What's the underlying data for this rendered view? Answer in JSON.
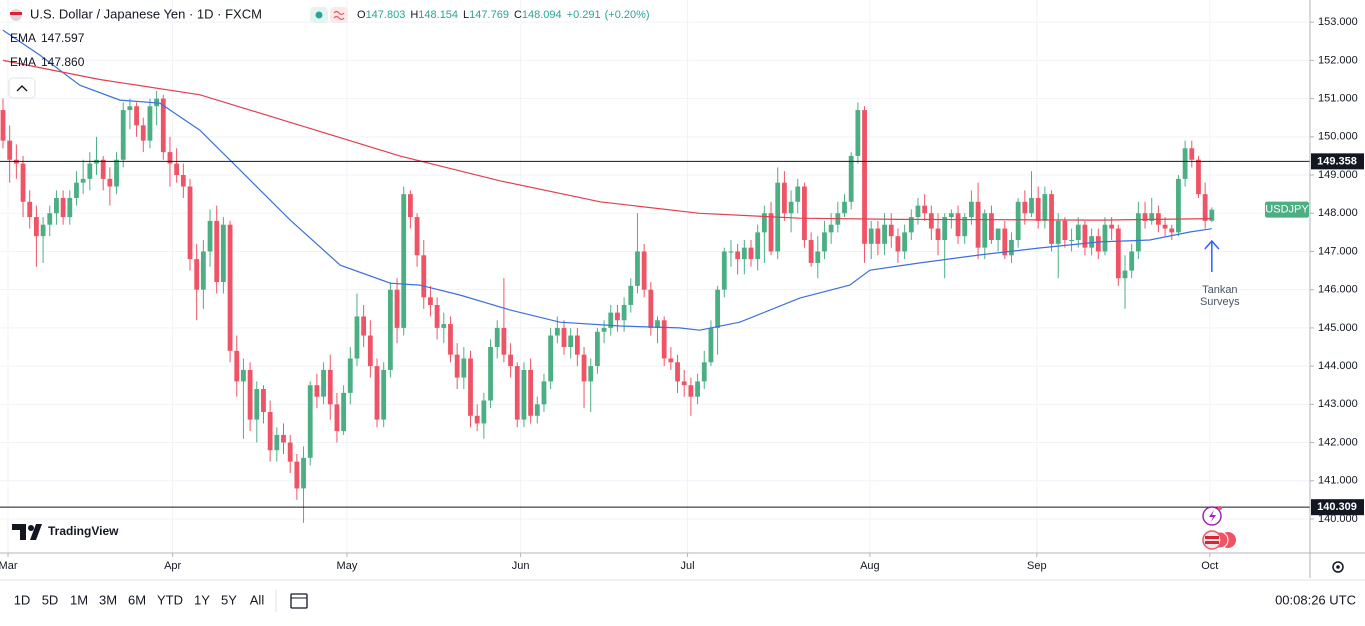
{
  "chart_data": {
    "type": "candlestick",
    "title": "U.S. Dollar / Japanese Yen · 1D · FXCM",
    "ohlc_letters": [
      "O",
      "H",
      "L",
      "C"
    ],
    "change": "+0.291",
    "change_pct": "(+0.20%)",
    "up_color": "#4caf84",
    "down_color": "#ef5466",
    "symbol_label": "USDJPY",
    "ylim": [
      139.11,
      153.58
    ],
    "yticks": [
      {
        "value": 140,
        "label": "140.000"
      },
      {
        "value": 141,
        "label": "141.000"
      },
      {
        "value": 142,
        "label": "142.000"
      },
      {
        "value": 143,
        "label": "143.000"
      },
      {
        "value": 144,
        "label": "144.000"
      },
      {
        "value": 145,
        "label": "145.000"
      },
      {
        "value": 146,
        "label": "146.000"
      },
      {
        "value": 147,
        "label": "147.000"
      },
      {
        "value": 148,
        "label": "148.000"
      },
      {
        "value": 149,
        "label": "149.000"
      },
      {
        "value": 150,
        "label": "150.000"
      },
      {
        "value": 151,
        "label": "151.000"
      },
      {
        "value": 152,
        "label": "152.000"
      },
      {
        "value": 153,
        "label": "153.000"
      }
    ],
    "xlim": [
      -0.45,
      195.7
    ],
    "xticks": [
      {
        "value": 0.75,
        "label": "Mar"
      },
      {
        "value": 25.4,
        "label": "Apr"
      },
      {
        "value": 51.5,
        "label": "May"
      },
      {
        "value": 77.5,
        "label": "Jun"
      },
      {
        "value": 102.5,
        "label": "Jul"
      },
      {
        "value": 129.8,
        "label": "Aug"
      },
      {
        "value": 154.8,
        "label": "Sep"
      },
      {
        "value": 180.7,
        "label": "Oct"
      }
    ],
    "grid": true,
    "candles": [
      [
        150.7,
        151.0,
        149.7,
        149.9
      ],
      [
        149.9,
        150.3,
        148.8,
        149.4
      ],
      [
        149.4,
        149.8,
        148.9,
        149.3
      ],
      [
        149.3,
        149.5,
        147.9,
        148.3
      ],
      [
        148.3,
        148.6,
        147.6,
        147.9
      ],
      [
        147.9,
        148.2,
        146.6,
        147.4
      ],
      [
        147.4,
        147.9,
        146.7,
        147.7
      ],
      [
        147.7,
        148.2,
        147.4,
        148.0
      ],
      [
        148.0,
        148.6,
        147.7,
        148.4
      ],
      [
        148.4,
        148.6,
        147.7,
        147.9
      ],
      [
        147.9,
        148.6,
        147.7,
        148.4
      ],
      [
        148.4,
        149.1,
        148.2,
        148.8
      ],
      [
        148.8,
        149.4,
        148.5,
        148.9
      ],
      [
        148.9,
        149.6,
        148.6,
        149.3
      ],
      [
        149.3,
        150.0,
        149.0,
        149.4
      ],
      [
        149.4,
        149.5,
        148.6,
        148.9
      ],
      [
        148.9,
        149.2,
        148.2,
        148.7
      ],
      [
        148.7,
        149.6,
        148.5,
        149.4
      ],
      [
        149.4,
        150.9,
        149.2,
        150.7
      ],
      [
        150.7,
        151.0,
        150.2,
        150.8
      ],
      [
        150.8,
        150.9,
        150.0,
        150.3
      ],
      [
        150.3,
        150.5,
        149.6,
        149.9
      ],
      [
        149.9,
        151.0,
        149.7,
        150.8
      ],
      [
        150.8,
        151.2,
        150.3,
        151.0
      ],
      [
        151.0,
        151.1,
        149.4,
        149.6
      ],
      [
        149.6,
        150.0,
        148.7,
        149.3
      ],
      [
        149.3,
        149.7,
        148.8,
        149.0
      ],
      [
        149.0,
        149.3,
        148.4,
        148.7
      ],
      [
        148.7,
        148.9,
        146.5,
        146.8
      ],
      [
        146.8,
        147.2,
        145.2,
        146.0
      ],
      [
        146.0,
        147.3,
        145.5,
        147.0
      ],
      [
        147.0,
        148.1,
        146.6,
        147.8
      ],
      [
        147.8,
        148.2,
        145.9,
        146.2
      ],
      [
        146.2,
        147.9,
        145.9,
        147.7
      ],
      [
        147.7,
        147.8,
        144.1,
        144.4
      ],
      [
        144.4,
        144.8,
        143.2,
        143.6
      ],
      [
        143.6,
        144.2,
        142.1,
        143.9
      ],
      [
        143.9,
        144.1,
        142.3,
        142.6
      ],
      [
        142.6,
        143.6,
        142.0,
        143.4
      ],
      [
        143.4,
        143.5,
        142.5,
        142.8
      ],
      [
        142.8,
        143.1,
        141.5,
        141.8
      ],
      [
        141.8,
        142.4,
        141.5,
        142.2
      ],
      [
        142.2,
        142.5,
        141.7,
        142.0
      ],
      [
        142.0,
        142.2,
        141.2,
        141.5
      ],
      [
        141.5,
        141.7,
        140.5,
        140.8
      ],
      [
        140.8,
        141.9,
        139.9,
        141.6
      ],
      [
        141.6,
        143.6,
        141.4,
        143.5
      ],
      [
        143.5,
        143.8,
        142.9,
        143.2
      ],
      [
        143.2,
        144.1,
        143.0,
        143.9
      ],
      [
        143.9,
        144.3,
        142.6,
        143.0
      ],
      [
        143.0,
        143.3,
        142.0,
        142.3
      ],
      [
        142.3,
        143.5,
        142.2,
        143.3
      ],
      [
        143.3,
        144.5,
        143.0,
        144.2
      ],
      [
        144.2,
        145.9,
        144.0,
        145.3
      ],
      [
        145.3,
        145.6,
        144.5,
        144.8
      ],
      [
        144.8,
        145.2,
        143.7,
        144.0
      ],
      [
        144.0,
        144.2,
        142.4,
        142.6
      ],
      [
        142.6,
        144.1,
        142.4,
        143.9
      ],
      [
        143.9,
        146.2,
        143.7,
        146.0
      ],
      [
        146.0,
        146.3,
        144.6,
        145.0
      ],
      [
        145.0,
        148.7,
        144.8,
        148.5
      ],
      [
        148.5,
        148.6,
        147.6,
        147.9
      ],
      [
        147.9,
        148.0,
        146.6,
        146.9
      ],
      [
        146.9,
        147.3,
        145.5,
        145.8
      ],
      [
        145.8,
        146.1,
        145.3,
        145.6
      ],
      [
        145.6,
        145.8,
        144.7,
        145.0
      ],
      [
        145.0,
        145.4,
        144.6,
        145.1
      ],
      [
        145.1,
        145.3,
        144.1,
        144.3
      ],
      [
        144.3,
        144.6,
        143.4,
        143.7
      ],
      [
        143.7,
        144.5,
        143.4,
        144.2
      ],
      [
        144.2,
        144.4,
        142.4,
        142.7
      ],
      [
        142.7,
        143.0,
        142.3,
        142.5
      ],
      [
        142.5,
        143.3,
        142.1,
        143.1
      ],
      [
        143.1,
        144.7,
        142.9,
        144.5
      ],
      [
        144.5,
        145.2,
        144.2,
        145.0
      ],
      [
        145.0,
        146.3,
        144.1,
        144.3
      ],
      [
        144.3,
        144.6,
        143.7,
        144.0
      ],
      [
        144.0,
        144.1,
        142.4,
        142.6
      ],
      [
        142.6,
        144.1,
        142.4,
        143.9
      ],
      [
        143.9,
        144.2,
        142.5,
        142.7
      ],
      [
        142.7,
        143.2,
        142.5,
        143.0
      ],
      [
        143.0,
        143.8,
        142.8,
        143.6
      ],
      [
        143.6,
        145.0,
        143.4,
        144.8
      ],
      [
        144.8,
        145.3,
        144.6,
        145.0
      ],
      [
        145.0,
        145.2,
        144.3,
        144.5
      ],
      [
        144.5,
        145.0,
        144.2,
        144.8
      ],
      [
        144.8,
        145.0,
        144.0,
        144.3
      ],
      [
        144.3,
        144.5,
        142.9,
        143.6
      ],
      [
        143.6,
        144.2,
        142.8,
        144.0
      ],
      [
        144.0,
        145.0,
        143.8,
        144.9
      ],
      [
        144.9,
        145.2,
        144.6,
        145.0
      ],
      [
        145.0,
        145.6,
        144.8,
        145.4
      ],
      [
        145.4,
        145.6,
        144.9,
        145.2
      ],
      [
        145.2,
        145.8,
        144.9,
        145.6
      ],
      [
        145.6,
        146.3,
        145.4,
        146.1
      ],
      [
        146.1,
        148.0,
        145.9,
        147.0
      ],
      [
        147.0,
        147.2,
        145.8,
        146.0
      ],
      [
        146.0,
        146.2,
        144.8,
        145.0
      ],
      [
        145.0,
        145.3,
        144.6,
        145.2
      ],
      [
        145.2,
        145.3,
        144.0,
        144.2
      ],
      [
        144.2,
        144.5,
        143.9,
        144.1
      ],
      [
        144.1,
        144.3,
        143.3,
        143.6
      ],
      [
        143.6,
        143.9,
        143.2,
        143.5
      ],
      [
        143.5,
        143.7,
        142.7,
        143.2
      ],
      [
        143.2,
        143.8,
        143.0,
        143.6
      ],
      [
        143.6,
        144.4,
        143.4,
        144.1
      ],
      [
        144.1,
        145.2,
        144.0,
        145.0
      ],
      [
        145.0,
        146.1,
        144.3,
        146.0
      ],
      [
        146.0,
        147.1,
        145.8,
        147.0
      ],
      [
        147.0,
        147.3,
        146.6,
        147.0
      ],
      [
        147.0,
        147.2,
        146.4,
        146.8
      ],
      [
        146.8,
        147.3,
        146.4,
        147.1
      ],
      [
        147.1,
        147.3,
        146.6,
        146.8
      ],
      [
        146.8,
        147.7,
        146.5,
        147.5
      ],
      [
        147.5,
        148.2,
        146.7,
        148.0
      ],
      [
        148.0,
        148.3,
        146.9,
        147.0
      ],
      [
        147.0,
        149.2,
        146.8,
        148.8
      ],
      [
        148.8,
        149.1,
        147.8,
        148.0
      ],
      [
        148.0,
        148.6,
        147.5,
        148.3
      ],
      [
        148.3,
        148.9,
        148.0,
        148.7
      ],
      [
        148.7,
        148.8,
        147.1,
        147.3
      ],
      [
        147.3,
        147.5,
        146.6,
        146.7
      ],
      [
        146.7,
        147.4,
        146.3,
        147.0
      ],
      [
        147.0,
        147.8,
        146.8,
        147.5
      ],
      [
        147.5,
        148.0,
        147.2,
        147.7
      ],
      [
        147.7,
        148.3,
        147.5,
        148.0
      ],
      [
        148.0,
        148.5,
        147.9,
        148.3
      ],
      [
        148.3,
        149.6,
        148.1,
        149.5
      ],
      [
        149.5,
        150.9,
        149.3,
        150.7
      ],
      [
        150.7,
        150.8,
        146.7,
        147.2
      ],
      [
        147.2,
        147.8,
        146.8,
        147.6
      ],
      [
        147.6,
        147.8,
        146.9,
        147.2
      ],
      [
        147.2,
        148.0,
        146.9,
        147.7
      ],
      [
        147.7,
        148.0,
        147.1,
        147.4
      ],
      [
        147.4,
        147.6,
        146.7,
        147.0
      ],
      [
        147.0,
        147.7,
        146.8,
        147.5
      ],
      [
        147.5,
        148.1,
        147.3,
        147.9
      ],
      [
        147.9,
        148.4,
        147.7,
        148.2
      ],
      [
        148.2,
        148.5,
        147.8,
        148.0
      ],
      [
        148.0,
        148.2,
        147.3,
        147.6
      ],
      [
        147.6,
        148.0,
        146.9,
        147.3
      ],
      [
        147.3,
        148.0,
        146.3,
        147.9
      ],
      [
        147.9,
        148.1,
        147.6,
        148.0
      ],
      [
        148.0,
        148.2,
        147.2,
        147.4
      ],
      [
        147.4,
        148.0,
        147.2,
        147.9
      ],
      [
        147.9,
        148.6,
        147.7,
        148.3
      ],
      [
        148.3,
        148.8,
        146.8,
        147.1
      ],
      [
        147.1,
        148.1,
        146.8,
        148.0
      ],
      [
        148.0,
        148.2,
        147.2,
        147.3
      ],
      [
        147.3,
        147.6,
        147.0,
        147.6
      ],
      [
        147.6,
        147.8,
        146.8,
        146.9
      ],
      [
        146.9,
        147.5,
        146.7,
        147.3
      ],
      [
        147.3,
        148.4,
        147.1,
        148.3
      ],
      [
        148.3,
        148.6,
        147.7,
        148.0
      ],
      [
        148.0,
        149.1,
        147.9,
        148.4
      ],
      [
        148.4,
        148.7,
        147.6,
        147.8
      ],
      [
        147.8,
        148.7,
        147.6,
        148.5
      ],
      [
        148.5,
        148.6,
        147.0,
        147.2
      ],
      [
        147.2,
        148.0,
        146.3,
        147.8
      ],
      [
        147.8,
        147.9,
        147.1,
        147.3
      ],
      [
        147.3,
        147.6,
        147.0,
        147.3
      ],
      [
        147.3,
        147.9,
        147.1,
        147.7
      ],
      [
        147.7,
        147.8,
        146.9,
        147.1
      ],
      [
        147.1,
        147.6,
        146.9,
        147.4
      ],
      [
        147.4,
        147.6,
        146.8,
        147.0
      ],
      [
        147.0,
        147.9,
        146.9,
        147.7
      ],
      [
        147.7,
        147.9,
        147.3,
        147.6
      ],
      [
        147.6,
        147.7,
        146.1,
        146.3
      ],
      [
        146.3,
        146.9,
        145.5,
        146.5
      ],
      [
        146.5,
        147.2,
        146.3,
        147.0
      ],
      [
        147.0,
        148.3,
        146.8,
        148.0
      ],
      [
        148.0,
        148.3,
        147.6,
        147.8
      ],
      [
        147.8,
        148.4,
        147.7,
        148.0
      ],
      [
        148.0,
        148.2,
        147.5,
        147.7
      ],
      [
        147.7,
        147.9,
        147.4,
        147.6
      ],
      [
        147.6,
        147.7,
        147.3,
        147.5
      ],
      [
        147.5,
        149.0,
        147.4,
        148.9
      ],
      [
        148.9,
        149.9,
        148.7,
        149.7
      ],
      [
        149.7,
        149.9,
        149.2,
        149.4
      ],
      [
        149.4,
        149.5,
        148.4,
        148.5
      ],
      [
        148.5,
        148.8,
        147.6,
        147.8
      ],
      [
        147.803,
        148.154,
        147.769,
        148.094
      ]
    ],
    "series": [
      {
        "name": "EMA",
        "color": "#3d6fe0",
        "last_label": "147.597",
        "x": [
          0,
          5.5,
          11.5,
          17.5,
          23.5,
          29.5,
          35.5,
          43,
          50.5,
          58,
          62.4,
          68.4,
          75.9,
          83.4,
          92.4,
          101.3,
          104.3,
          110.3,
          119.3,
          126.8,
          129.8,
          137.3,
          146.3,
          155.2,
          164.2,
          171.7,
          177.7,
          181
        ],
        "values": [
          152.79,
          152.14,
          151.35,
          150.96,
          150.88,
          150.17,
          149.13,
          147.82,
          146.64,
          146.17,
          146.12,
          145.86,
          145.47,
          145.15,
          145.05,
          145.0,
          144.94,
          145.15,
          145.78,
          146.12,
          146.51,
          146.7,
          146.91,
          147.09,
          147.25,
          147.3,
          147.51,
          147.597
        ]
      },
      {
        "name": "EMA",
        "color": "#e0404f",
        "last_label": "147.860",
        "x": [
          0,
          14.5,
          29.5,
          44.5,
          59.4,
          74.4,
          89.4,
          104.3,
          119.3,
          134.3,
          149.3,
          164.2,
          181
        ],
        "values": [
          152.0,
          151.5,
          151.1,
          150.3,
          149.5,
          148.85,
          148.3,
          148.0,
          147.87,
          147.84,
          147.83,
          147.82,
          147.86
        ]
      }
    ],
    "hlines": [
      149.358,
      140.309
    ],
    "annotation": {
      "lines": [
        "Tankan",
        "Surveys"
      ],
      "color": "#2962ff"
    },
    "brand": "TradingView",
    "timeframes": [
      "1D",
      "5D",
      "1M",
      "3M",
      "6M",
      "YTD",
      "1Y",
      "5Y",
      "All"
    ],
    "clock": "00:08:26 UTC"
  }
}
